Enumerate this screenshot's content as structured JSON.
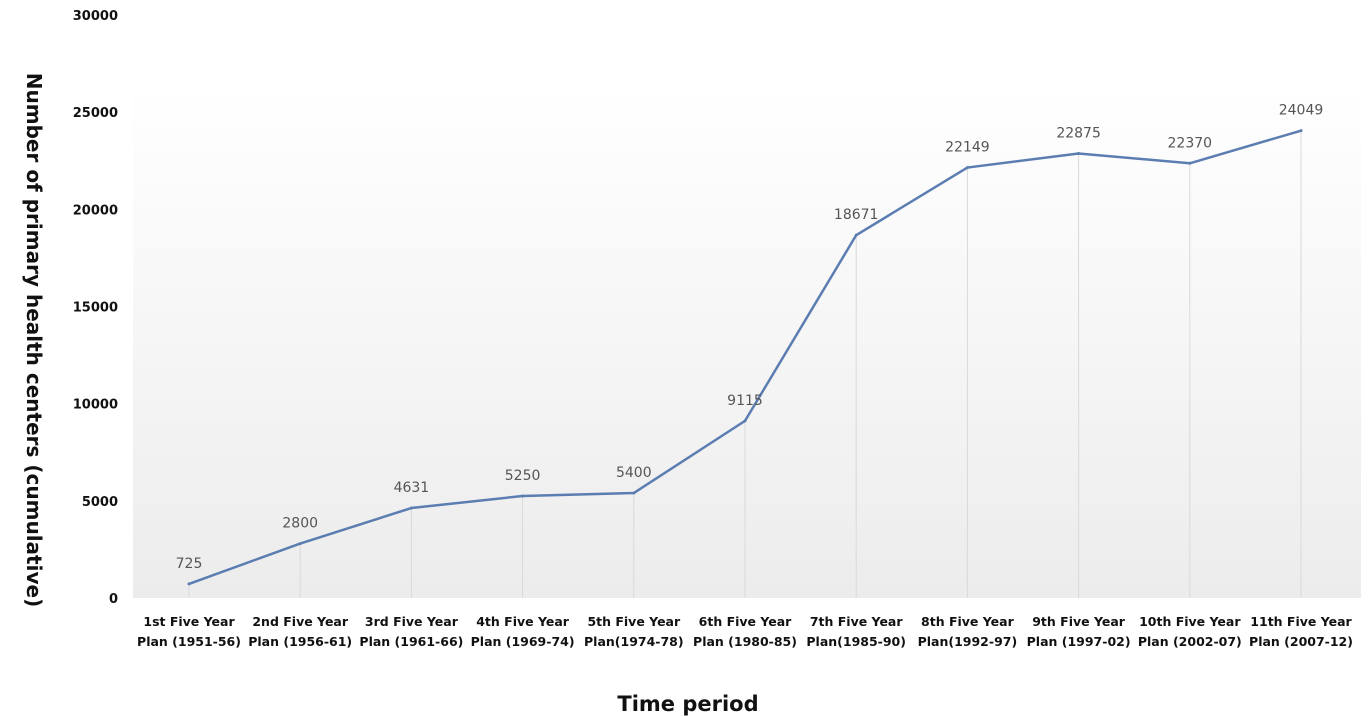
{
  "chart_data": {
    "type": "line",
    "title": "",
    "xlabel": "Time period",
    "ylabel": "Number of primary health centers (cumulative)",
    "ylim": [
      0,
      30000
    ],
    "yticks": [
      0,
      5000,
      10000,
      15000,
      20000,
      25000,
      30000
    ],
    "grid": "vertical drop lines at each category",
    "categories": [
      [
        "1st Five Year",
        "Plan (1951-56)"
      ],
      [
        "2nd Five Year",
        "Plan (1956-61)"
      ],
      [
        "3rd Five Year",
        "Plan (1961-66)"
      ],
      [
        "4th Five Year",
        "Plan (1969-74)"
      ],
      [
        "5th Five Year",
        "Plan(1974-78)"
      ],
      [
        "6th Five Year",
        "Plan (1980-85)"
      ],
      [
        "7th Five Year",
        "Plan(1985-90)"
      ],
      [
        "8th Five Year",
        "Plan(1992-97)"
      ],
      [
        "9th Five Year",
        "Plan (1997-02)"
      ],
      [
        "10th Five Year",
        "Plan (2002-07)"
      ],
      [
        "11th  Five Year",
        "Plan (2007-12)"
      ]
    ],
    "series": [
      {
        "values": [
          725,
          2800,
          4631,
          5250,
          5400,
          9115,
          18671,
          22149,
          22875,
          22370,
          24049
        ],
        "labels": [
          "725",
          "2800",
          "4631",
          "5250",
          "5400",
          "9115",
          "18671",
          "22149",
          "22875",
          "22370",
          "24049"
        ]
      }
    ],
    "colors": {
      "line": "#5b7db1",
      "plot_background_top": "#ffffff",
      "plot_background_bottom": "#ececec",
      "drop_lines": "#d9d9d9"
    }
  }
}
